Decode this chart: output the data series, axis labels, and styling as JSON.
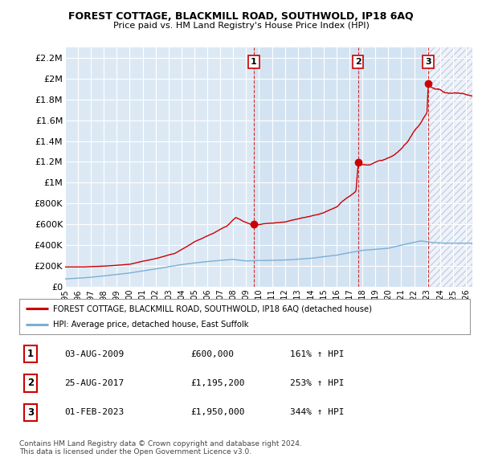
{
  "title": "FOREST COTTAGE, BLACKMILL ROAD, SOUTHWOLD, IP18 6AQ",
  "subtitle": "Price paid vs. HM Land Registry's House Price Index (HPI)",
  "ylabel_ticks": [
    "£0",
    "£200K",
    "£400K",
    "£600K",
    "£800K",
    "£1M",
    "£1.2M",
    "£1.4M",
    "£1.6M",
    "£1.8M",
    "£2M",
    "£2.2M"
  ],
  "ytick_values": [
    0,
    200000,
    400000,
    600000,
    800000,
    1000000,
    1200000,
    1400000,
    1600000,
    1800000,
    2000000,
    2200000
  ],
  "ylim": [
    0,
    2300000
  ],
  "xlim_start": 1995.0,
  "xlim_end": 2026.5,
  "property_color": "#cc0000",
  "hpi_color": "#7bafd4",
  "background_color": "#ffffff",
  "plot_bg": "#dce9f5",
  "shade_between_color": "#e8f2fc",
  "grid_color": "#ffffff",
  "sale_markers": [
    {
      "year": 2009.6,
      "price": 600000,
      "label": "1"
    },
    {
      "year": 2017.65,
      "price": 1195200,
      "label": "2"
    },
    {
      "year": 2023.08,
      "price": 1950000,
      "label": "3"
    }
  ],
  "table_rows": [
    {
      "num": "1",
      "date": "03-AUG-2009",
      "price": "£600,000",
      "hpi": "161% ↑ HPI"
    },
    {
      "num": "2",
      "date": "25-AUG-2017",
      "price": "£1,195,200",
      "hpi": "253% ↑ HPI"
    },
    {
      "num": "3",
      "date": "01-FEB-2023",
      "price": "£1,950,000",
      "hpi": "344% ↑ HPI"
    }
  ],
  "legend_property": "FOREST COTTAGE, BLACKMILL ROAD, SOUTHWOLD, IP18 6AQ (detached house)",
  "legend_hpi": "HPI: Average price, detached house, East Suffolk",
  "footnote": "Contains HM Land Registry data © Crown copyright and database right 2024.\nThis data is licensed under the Open Government Licence v3.0."
}
